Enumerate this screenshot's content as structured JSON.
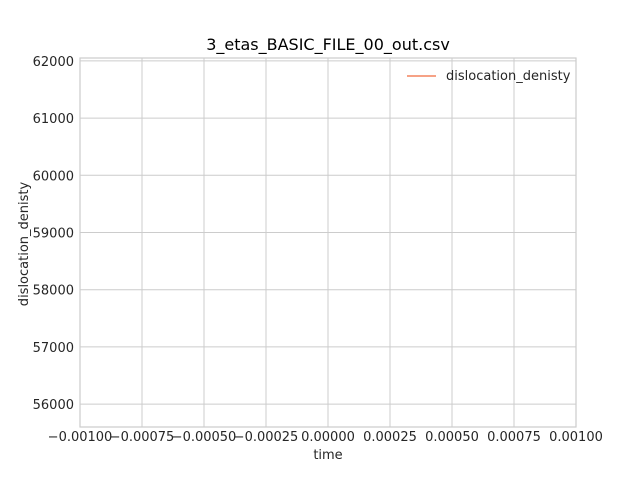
{
  "chart_data": {
    "type": "line",
    "title": "3_etas_BASIC_FILE_00_out.csv",
    "xlabel": "time",
    "ylabel": "dislocation_denisty",
    "xlim": [
      -0.001,
      0.001
    ],
    "ylim": [
      55600,
      62050
    ],
    "x_ticks": [
      -0.001,
      -0.00075,
      -0.0005,
      -0.00025,
      0.0,
      0.00025,
      0.0005,
      0.00075,
      0.001
    ],
    "x_tick_labels": [
      "−0.00100",
      "−0.00075",
      "−0.00050",
      "−0.00025",
      "0.00000",
      "0.00025",
      "0.00050",
      "0.00075",
      "0.00100"
    ],
    "y_ticks": [
      56000,
      57000,
      58000,
      59000,
      60000,
      61000,
      62000
    ],
    "y_tick_labels": [
      "56000",
      "57000",
      "58000",
      "59000",
      "60000",
      "61000",
      "62000"
    ],
    "grid": true,
    "legend_position": "top-right",
    "series": [
      {
        "name": "dislocation_denisty",
        "color": "#f4845f",
        "x": [],
        "y": []
      }
    ]
  }
}
